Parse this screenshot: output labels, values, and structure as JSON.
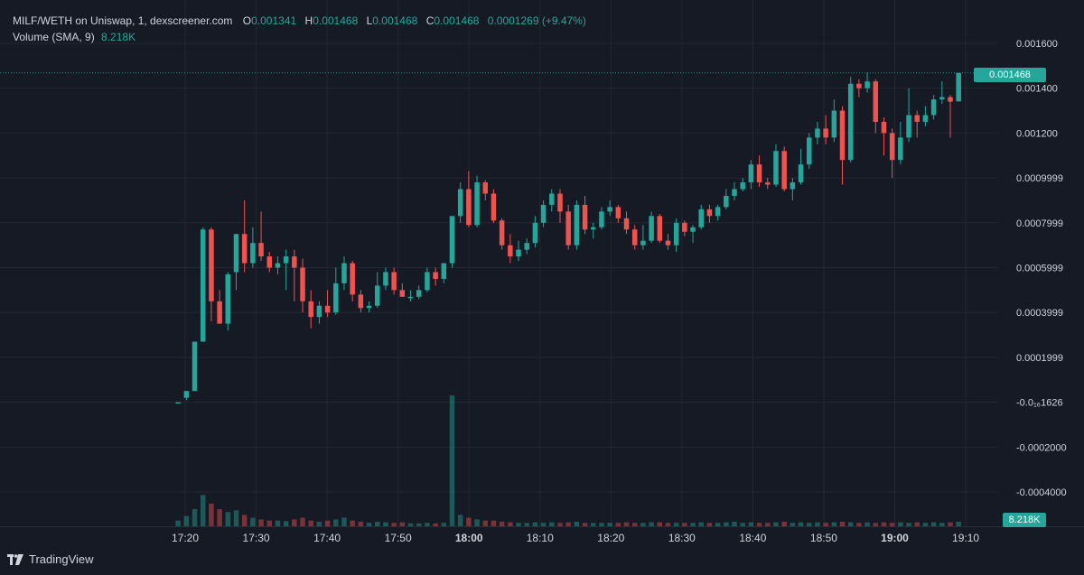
{
  "legend": {
    "symbol": "MILF/WETH on Uniswap, 1, dexscreener.com",
    "o_label": "O",
    "o_value": "0.001341",
    "h_label": "H",
    "h_value": "0.001468",
    "l_label": "L",
    "l_value": "0.001468",
    "c_label": "C",
    "c_value": "0.001468",
    "change": "0.0001269 (+9.47%)",
    "volume_label": "Volume (SMA, 9)",
    "volume_value": "8.218K"
  },
  "last_price_tag": "0.001468",
  "volume_tag": "8.218K",
  "brand": "TradingView",
  "colors": {
    "up": "#26a69a",
    "down": "#ef5350",
    "background": "#161a25",
    "grid": "#232733"
  },
  "chart_data": {
    "type": "candlestick",
    "title": "MILF/WETH on Uniswap, 1, dexscreener.com",
    "y_ticks": [
      "0.001600",
      "0.001400",
      "0.001200",
      "0.0009999",
      "0.0007999",
      "0.0005999",
      "0.0003999",
      "0.0001999",
      "-0.0₁₆1626",
      "-0.0002000",
      "-0.0004000"
    ],
    "y_tick_values": [
      0.0016,
      0.0014,
      0.0012,
      0.001,
      0.0008,
      0.0006,
      0.0004,
      0.0002,
      0,
      -0.0002,
      -0.0004
    ],
    "ylim": [
      -0.00058,
      0.00175
    ],
    "x_ticks": [
      "17:20",
      "17:30",
      "17:40",
      "17:50",
      "18:00",
      "18:10",
      "18:20",
      "18:30",
      "18:40",
      "18:50",
      "19:00",
      "19:10"
    ],
    "x_ticks_bold": [
      "18:00",
      "19:00"
    ],
    "start_time": "17:19",
    "end_time": "19:10",
    "grid": true,
    "candles_ohlcv": [
      [
        0.0,
        0.0,
        0.0,
        0.0,
        0.1
      ],
      [
        2e-05,
        5e-05,
        1e-05,
        5e-05,
        0.18
      ],
      [
        5e-05,
        0.00027,
        5e-05,
        0.00027,
        0.3
      ],
      [
        0.00027,
        0.00078,
        0.00027,
        0.00077,
        0.55
      ],
      [
        0.00077,
        0.00078,
        0.00036,
        0.00045,
        0.4
      ],
      [
        0.00045,
        0.0005,
        0.0004,
        0.00035,
        0.3
      ],
      [
        0.00035,
        0.00058,
        0.00032,
        0.00057,
        0.25
      ],
      [
        0.00058,
        0.00075,
        0.0005,
        0.00075,
        0.28
      ],
      [
        0.00075,
        0.0009,
        0.00058,
        0.00062,
        0.2
      ],
      [
        0.00062,
        0.00078,
        0.0006,
        0.00071,
        0.15
      ],
      [
        0.00071,
        0.00085,
        0.00063,
        0.00065,
        0.12
      ],
      [
        0.00065,
        0.00067,
        0.00058,
        0.0006,
        0.1
      ],
      [
        0.0006,
        0.00065,
        0.00057,
        0.00062,
        0.1
      ],
      [
        0.00062,
        0.00068,
        0.0005,
        0.00065,
        0.09
      ],
      [
        0.00065,
        0.00068,
        0.00045,
        0.0006,
        0.12
      ],
      [
        0.0006,
        0.00064,
        0.0004,
        0.00045,
        0.15
      ],
      [
        0.00045,
        0.0005,
        0.00033,
        0.00038,
        0.1
      ],
      [
        0.00038,
        0.00045,
        0.00035,
        0.00043,
        0.08
      ],
      [
        0.00043,
        0.0005,
        0.00038,
        0.0004,
        0.1
      ],
      [
        0.0004,
        0.0006,
        0.00039,
        0.00053,
        0.12
      ],
      [
        0.00053,
        0.00065,
        0.0005,
        0.00062,
        0.15
      ],
      [
        0.00062,
        0.00063,
        0.00045,
        0.00048,
        0.1
      ],
      [
        0.00048,
        0.0005,
        0.0004,
        0.00042,
        0.08
      ],
      [
        0.00042,
        0.00045,
        0.0004,
        0.00043,
        0.06
      ],
      [
        0.00043,
        0.00058,
        0.00042,
        0.00052,
        0.08
      ],
      [
        0.00052,
        0.0006,
        0.0005,
        0.00058,
        0.07
      ],
      [
        0.00058,
        0.0006,
        0.00048,
        0.0005,
        0.06
      ],
      [
        0.0005,
        0.00053,
        0.00047,
        0.00047,
        0.07
      ],
      [
        0.00047,
        0.0005,
        0.00045,
        0.00047,
        0.05
      ],
      [
        0.00047,
        0.00052,
        0.00046,
        0.0005,
        0.05
      ],
      [
        0.0005,
        0.0006,
        0.00049,
        0.00058,
        0.06
      ],
      [
        0.00058,
        0.0006,
        0.00052,
        0.00055,
        0.05
      ],
      [
        0.00055,
        0.00062,
        0.00053,
        0.00062,
        0.06
      ],
      [
        0.00062,
        0.00083,
        0.0006,
        0.00083,
        2.3
      ],
      [
        0.00083,
        0.00098,
        0.0008,
        0.00095,
        0.2
      ],
      [
        0.00095,
        0.00103,
        0.00078,
        0.00079,
        0.15
      ],
      [
        0.00079,
        0.00101,
        0.00078,
        0.00098,
        0.12
      ],
      [
        0.00098,
        0.00099,
        0.0009,
        0.00093,
        0.1
      ],
      [
        0.00093,
        0.00095,
        0.0008,
        0.00081,
        0.1
      ],
      [
        0.00081,
        0.00082,
        0.00068,
        0.0007,
        0.08
      ],
      [
        0.0007,
        0.00075,
        0.00062,
        0.00065,
        0.07
      ],
      [
        0.00065,
        0.00072,
        0.00063,
        0.00068,
        0.06
      ],
      [
        0.00068,
        0.00073,
        0.00066,
        0.00071,
        0.06
      ],
      [
        0.00071,
        0.00083,
        0.00069,
        0.0008,
        0.07
      ],
      [
        0.0008,
        0.0009,
        0.00078,
        0.00088,
        0.06
      ],
      [
        0.00088,
        0.00095,
        0.00085,
        0.00093,
        0.07
      ],
      [
        0.00093,
        0.00095,
        0.0008,
        0.00085,
        0.06
      ],
      [
        0.00085,
        0.00088,
        0.00068,
        0.0007,
        0.07
      ],
      [
        0.0007,
        0.0009,
        0.00068,
        0.00088,
        0.08
      ],
      [
        0.00088,
        0.00092,
        0.00075,
        0.00077,
        0.06
      ],
      [
        0.00077,
        0.0008,
        0.00073,
        0.00078,
        0.06
      ],
      [
        0.00078,
        0.00087,
        0.00077,
        0.00085,
        0.06
      ],
      [
        0.00085,
        0.0009,
        0.00083,
        0.00087,
        0.06
      ],
      [
        0.00087,
        0.00088,
        0.0008,
        0.00082,
        0.06
      ],
      [
        0.00082,
        0.00085,
        0.00075,
        0.00077,
        0.07
      ],
      [
        0.00077,
        0.00079,
        0.00068,
        0.0007,
        0.06
      ],
      [
        0.0007,
        0.00079,
        0.00068,
        0.00072,
        0.06
      ],
      [
        0.00072,
        0.00085,
        0.00071,
        0.00083,
        0.07
      ],
      [
        0.00083,
        0.00084,
        0.00071,
        0.00072,
        0.07
      ],
      [
        0.00072,
        0.00075,
        0.00068,
        0.0007,
        0.06
      ],
      [
        0.0007,
        0.00082,
        0.00067,
        0.0008,
        0.06
      ],
      [
        0.0008,
        0.00081,
        0.00074,
        0.00076,
        0.06
      ],
      [
        0.00076,
        0.00079,
        0.00071,
        0.00078,
        0.06
      ],
      [
        0.00078,
        0.00088,
        0.00077,
        0.00086,
        0.07
      ],
      [
        0.00086,
        0.00088,
        0.0008,
        0.00083,
        0.06
      ],
      [
        0.00083,
        0.00088,
        0.00081,
        0.00087,
        0.06
      ],
      [
        0.00087,
        0.00095,
        0.00086,
        0.00092,
        0.07
      ],
      [
        0.00092,
        0.00098,
        0.0009,
        0.00095,
        0.08
      ],
      [
        0.00095,
        0.001,
        0.00094,
        0.00098,
        0.06
      ],
      [
        0.00098,
        0.00108,
        0.00095,
        0.00106,
        0.07
      ],
      [
        0.00106,
        0.0011,
        0.00096,
        0.00098,
        0.06
      ],
      [
        0.00098,
        0.001,
        0.00095,
        0.00097,
        0.06
      ],
      [
        0.00097,
        0.00115,
        0.00096,
        0.00112,
        0.07
      ],
      [
        0.00112,
        0.00114,
        0.00094,
        0.00095,
        0.08
      ],
      [
        0.00095,
        0.001,
        0.0009,
        0.00098,
        0.06
      ],
      [
        0.00098,
        0.00113,
        0.00097,
        0.00106,
        0.07
      ],
      [
        0.00106,
        0.0012,
        0.00104,
        0.00118,
        0.06
      ],
      [
        0.00118,
        0.00125,
        0.00115,
        0.00122,
        0.07
      ],
      [
        0.00122,
        0.00128,
        0.00115,
        0.00118,
        0.06
      ],
      [
        0.00118,
        0.00135,
        0.00116,
        0.0013,
        0.07
      ],
      [
        0.0013,
        0.00132,
        0.00097,
        0.00108,
        0.08
      ],
      [
        0.00108,
        0.00145,
        0.00107,
        0.00142,
        0.07
      ],
      [
        0.00142,
        0.00144,
        0.00136,
        0.0014,
        0.06
      ],
      [
        0.0014,
        0.00147,
        0.00138,
        0.00143,
        0.07
      ],
      [
        0.00143,
        0.00144,
        0.0012,
        0.00125,
        0.06
      ],
      [
        0.00125,
        0.00127,
        0.0011,
        0.0012,
        0.07
      ],
      [
        0.0012,
        0.00122,
        0.001,
        0.00108,
        0.06
      ],
      [
        0.00108,
        0.00125,
        0.00106,
        0.00118,
        0.07
      ],
      [
        0.00118,
        0.0014,
        0.00116,
        0.00128,
        0.06
      ],
      [
        0.00128,
        0.0013,
        0.00118,
        0.00125,
        0.07
      ],
      [
        0.00125,
        0.00132,
        0.00123,
        0.00128,
        0.06
      ],
      [
        0.00128,
        0.00137,
        0.00126,
        0.00135,
        0.07
      ],
      [
        0.00135,
        0.00143,
        0.00133,
        0.00136,
        0.06
      ],
      [
        0.00136,
        0.00137,
        0.00118,
        0.00134,
        0.07
      ],
      [
        0.001341,
        0.001468,
        0.001468,
        0.001468,
        0.08
      ]
    ]
  }
}
